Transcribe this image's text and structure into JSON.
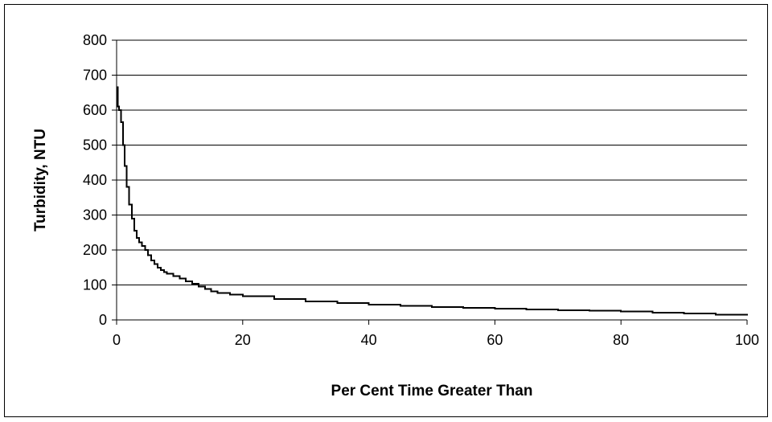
{
  "chart_data": {
    "type": "line",
    "title": "",
    "xlabel": "Per Cent Time Greater Than",
    "ylabel": "Turbidity, NTU",
    "xlim": [
      0,
      100
    ],
    "ylim": [
      0,
      800
    ],
    "xticks": [
      "0",
      "20",
      "40",
      "60",
      "80",
      "100"
    ],
    "yticks": [
      "0",
      "100",
      "200",
      "300",
      "400",
      "500",
      "600",
      "700",
      "800"
    ],
    "grid": "horizontal",
    "legend": "none",
    "line_color": "#000000",
    "series": [
      {
        "x": [
          0,
          0.2,
          0.4,
          0.7,
          1.0,
          1.3,
          1.6,
          2.0,
          2.4,
          2.8,
          3.2,
          3.6,
          4.0,
          4.5,
          5.0,
          5.5,
          6.0,
          6.5,
          7.0,
          7.5,
          8.0,
          9.0,
          10.0,
          11.0,
          12.0,
          13.0,
          14.0,
          15.0,
          16.0,
          18.0,
          20.0,
          25.0,
          30.0,
          35.0,
          40.0,
          45.0,
          50.0,
          55.0,
          60.0,
          65.0,
          70.0,
          75.0,
          80.0,
          85.0,
          90.0,
          95.0,
          100.0
        ],
        "y": [
          665,
          610,
          600,
          565,
          500,
          440,
          380,
          330,
          290,
          255,
          235,
          222,
          212,
          200,
          185,
          170,
          160,
          150,
          143,
          137,
          132,
          125,
          118,
          110,
          103,
          95,
          88,
          82,
          77,
          72,
          68,
          60,
          53,
          48,
          44,
          40,
          37,
          34,
          32,
          30,
          28,
          26,
          24,
          21,
          18,
          15,
          13
        ]
      }
    ]
  }
}
